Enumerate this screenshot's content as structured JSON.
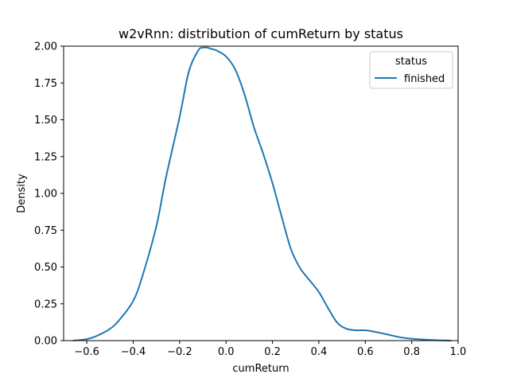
{
  "chart_data": {
    "type": "line",
    "title": "w2vRnn: distribution of cumReturn by status",
    "xlabel": "cumReturn",
    "ylabel": "Density",
    "xlim": [
      -0.7,
      1.0
    ],
    "ylim": [
      0.0,
      2.0
    ],
    "xticks": [
      -0.6,
      -0.4,
      -0.2,
      0.0,
      0.2,
      0.4,
      0.6,
      0.8,
      1.0
    ],
    "xtick_labels": [
      "−0.6",
      "−0.4",
      "−0.2",
      "0.0",
      "0.2",
      "0.4",
      "0.6",
      "0.8",
      "1.0"
    ],
    "yticks": [
      0.0,
      0.25,
      0.5,
      0.75,
      1.0,
      1.25,
      1.5,
      1.75,
      2.0
    ],
    "ytick_labels": [
      "0.00",
      "0.25",
      "0.50",
      "0.75",
      "1.00",
      "1.25",
      "1.50",
      "1.75",
      "2.00"
    ],
    "grid": false,
    "legend": {
      "title": "status",
      "placement": "top-right"
    },
    "series": [
      {
        "name": "finished",
        "color": "#1f77b4",
        "x": [
          -0.66,
          -0.6,
          -0.56,
          -0.5,
          -0.46,
          -0.4,
          -0.36,
          -0.3,
          -0.26,
          -0.2,
          -0.16,
          -0.12,
          -0.1,
          -0.08,
          -0.06,
          -0.04,
          0.0,
          0.04,
          0.08,
          0.12,
          0.16,
          0.2,
          0.24,
          0.28,
          0.32,
          0.36,
          0.4,
          0.44,
          0.48,
          0.52,
          0.56,
          0.6,
          0.64,
          0.7,
          0.76,
          0.82,
          0.88,
          0.92,
          0.97
        ],
        "y": [
          0.0,
          0.01,
          0.03,
          0.08,
          0.14,
          0.27,
          0.44,
          0.78,
          1.1,
          1.52,
          1.83,
          1.97,
          1.99,
          1.99,
          1.98,
          1.97,
          1.93,
          1.84,
          1.67,
          1.45,
          1.27,
          1.07,
          0.84,
          0.62,
          0.49,
          0.41,
          0.33,
          0.22,
          0.12,
          0.08,
          0.07,
          0.07,
          0.06,
          0.04,
          0.02,
          0.01,
          0.005,
          0.002,
          0.0
        ]
      }
    ]
  }
}
